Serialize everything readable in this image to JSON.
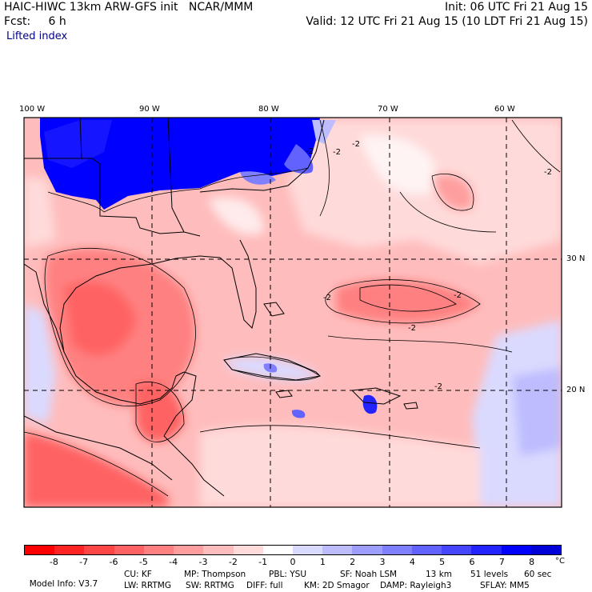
{
  "header": {
    "line1_left": "HAIC-HIWC 13km ARW-GFS init   NCAR/MMM",
    "line1_right": "Init: 06 UTC Fri 21 Aug 15",
    "line2_left": "Fcst:     6 h",
    "line2_right": "Valid: 12 UTC Fri 21 Aug 15 (10 LDT Fri 21 Aug 15)",
    "field_name": "Lifted index"
  },
  "map": {
    "lon_labels": [
      "100 W",
      "90 W",
      "80 W",
      "70 W",
      "60 W"
    ],
    "lat_labels": [
      "30 N",
      "20 N"
    ],
    "contour_labels": [
      "-2",
      "-2",
      "-2",
      "-2",
      "-2",
      "-2",
      "-2",
      "-2"
    ]
  },
  "colorbar": {
    "colors": [
      "#ff0000",
      "#ff2323",
      "#ff4646",
      "#ff6262",
      "#ff8080",
      "#ff9e9e",
      "#ffbcbc",
      "#ffdada",
      "#ffffff",
      "#dadaff",
      "#bcbcff",
      "#9e9eff",
      "#8080ff",
      "#6262ff",
      "#4646ff",
      "#2323ff",
      "#0000ff",
      "#0000d8"
    ],
    "ticks": [
      "-8",
      "-7",
      "-6",
      "-5",
      "-4",
      "-3",
      "-2",
      "-1",
      "0",
      "1",
      "2",
      "3",
      "4",
      "5",
      "6",
      "7",
      "8"
    ],
    "unit": "°C"
  },
  "model_info": {
    "row1": [
      "Model Info: V3.7",
      "CU: KF",
      "MP: Thompson",
      "PBL: YSU",
      "SF: Noah LSM",
      "13 km",
      "51 levels",
      "60 sec"
    ],
    "row2": [
      "LW: RRTMG",
      "SW: RRTMG",
      "DIFF: full",
      "KM: 2D Smagor",
      "DAMP: Rayleigh3",
      "SFLAY: MM5"
    ]
  }
}
